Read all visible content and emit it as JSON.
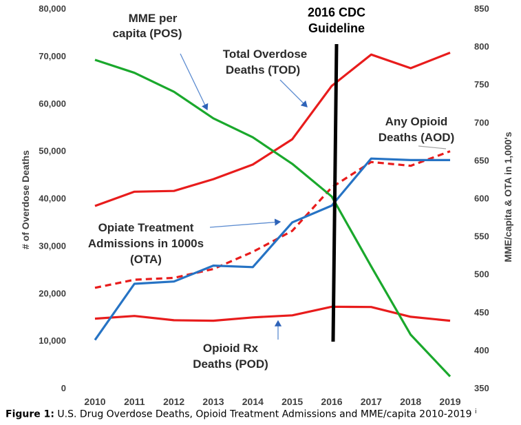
{
  "chart_data": {
    "type": "line",
    "categories": [
      "2010",
      "2011",
      "2012",
      "2013",
      "2014",
      "2015",
      "2016",
      "2017",
      "2018",
      "2019"
    ],
    "x": [
      2010,
      2011,
      2012,
      2013,
      2014,
      2015,
      2016,
      2017,
      2018,
      2019
    ],
    "left_axis": {
      "label": "# of Overdose Deaths",
      "ylim": [
        0,
        80000
      ],
      "ticks": [
        "0",
        "10,000",
        "20,000",
        "30,000",
        "40,000",
        "50,000",
        "60,000",
        "70,000",
        "80,000"
      ]
    },
    "right_axis": {
      "label": "MME/capita & OTA in 1,000's",
      "ylim": [
        350,
        850
      ],
      "ticks": [
        "350",
        "400",
        "450",
        "500",
        "550",
        "600",
        "650",
        "700",
        "750",
        "800",
        "850"
      ]
    },
    "series": [
      {
        "name": "Total Overdose Deaths (TOD)",
        "axis": "left",
        "color": "#e81c1c",
        "dash": false,
        "values": [
          38329,
          41340,
          41502,
          43982,
          47055,
          52404,
          63632,
          70237,
          67367,
          70630
        ]
      },
      {
        "name": "Any Opioid Deaths (AOD)",
        "axis": "left",
        "color": "#e81c1c",
        "dash": true,
        "values": [
          21088,
          22784,
          23166,
          25052,
          28647,
          33091,
          42249,
          47600,
          46802,
          49860
        ]
      },
      {
        "name": "Opioid Rx Deaths (POD)",
        "axis": "left",
        "color": "#e81c1c",
        "dash": false,
        "values": [
          14583,
          15140,
          14240,
          14145,
          14838,
          15281,
          17087,
          17029,
          14975,
          14139
        ]
      },
      {
        "name": "MME per capita (POS)",
        "axis": "right",
        "color": "#1aa82c",
        "dash": false,
        "values": [
          782,
          765,
          740,
          705,
          680,
          645,
          602,
          510,
          420,
          365
        ]
      },
      {
        "name": "Opiate Treatment Admissions in 1000s (OTA)",
        "axis": "right",
        "color": "#2673c4",
        "dash": false,
        "values": [
          413,
          487,
          490,
          511,
          509,
          568,
          590,
          652,
          650,
          650
        ]
      }
    ],
    "vline": {
      "x": 2016,
      "label_line1": "2016 CDC",
      "label_line2": "Guideline"
    },
    "annotations": {
      "pos": [
        "MME per",
        "capita  (POS)"
      ],
      "tod": [
        "Total Overdose",
        "Deaths (TOD)"
      ],
      "aod": [
        "Any Opioid",
        "Deaths (AOD)"
      ],
      "ota": [
        "Opiate Treatment",
        "Admissions in 1000s",
        "(OTA)"
      ],
      "pod": [
        "Opioid Rx",
        "Deaths (POD)"
      ]
    },
    "grid": false,
    "legend": "none"
  },
  "caption": {
    "prefix": "Figure 1:",
    "text": " U.S. Drug Overdose Deaths, Opioid Treatment Admissions and MME/capita 2010-2019",
    "note": "i"
  }
}
